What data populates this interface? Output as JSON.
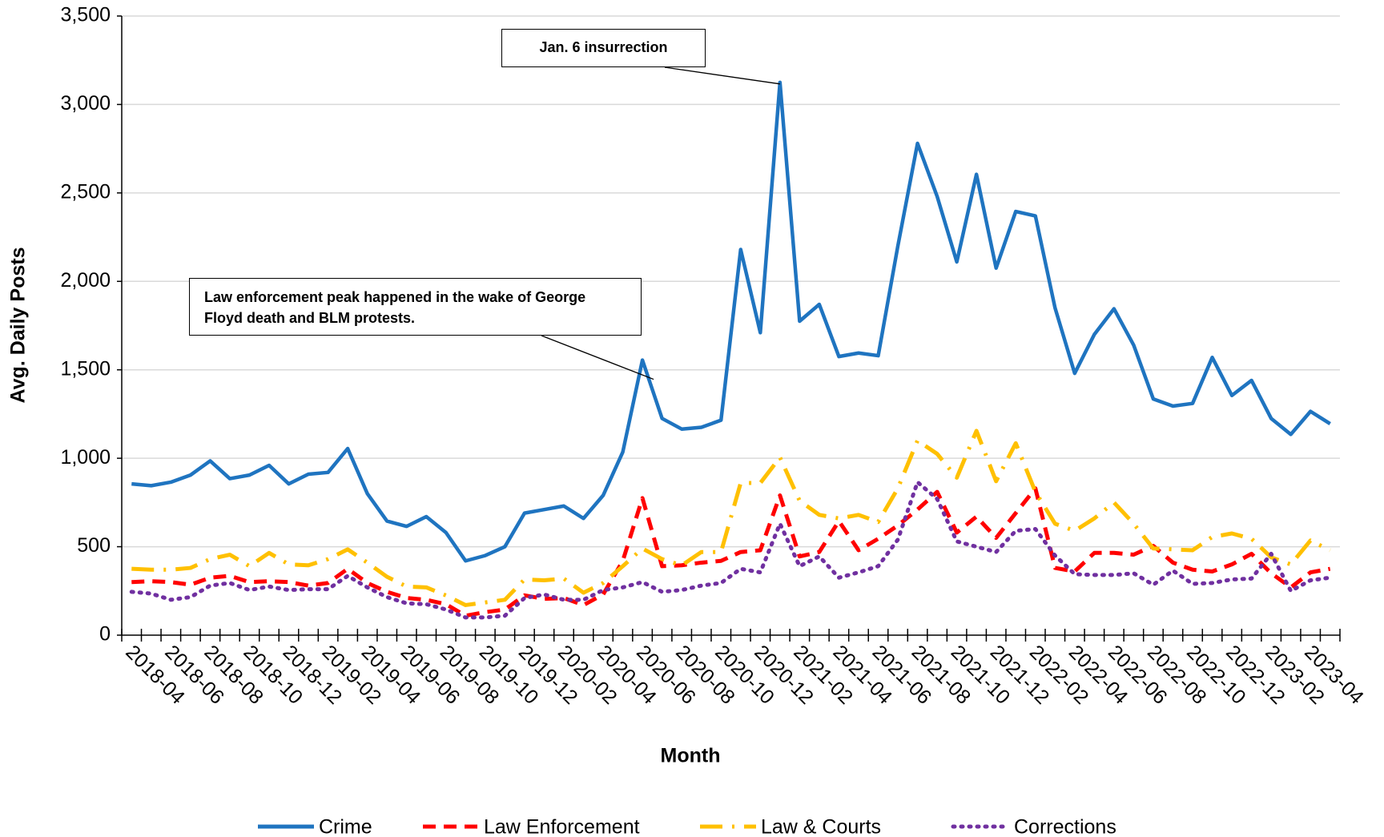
{
  "chart_data": {
    "type": "line",
    "x_label": "Month",
    "y_label": "Avg. Daily Posts",
    "categories": [
      "2018-04",
      null,
      "2018-06",
      null,
      "2018-08",
      null,
      "2018-10",
      null,
      "2018-12",
      null,
      "2019-02",
      null,
      "2019-04",
      null,
      "2019-06",
      null,
      "2019-08",
      null,
      "2019-10",
      null,
      "2019-12",
      null,
      "2020-02",
      null,
      "2020-04",
      null,
      "2020-06",
      null,
      "2020-08",
      null,
      "2020-10",
      null,
      "2020-12",
      null,
      "2021-02",
      null,
      "2021-04",
      null,
      "2021-06",
      null,
      "2021-08",
      null,
      "2021-10",
      null,
      "2021-12",
      null,
      "2022-02",
      null,
      "2022-04",
      null,
      "2022-06",
      null,
      "2022-08",
      null,
      "2022-10",
      null,
      "2022-12",
      null,
      "2023-02",
      null,
      "2023-04",
      null
    ],
    "series": [
      {
        "name": "Crime",
        "color": "#1f74c0",
        "dash": "solid",
        "values": [
          855,
          845,
          865,
          905,
          985,
          885,
          905,
          960,
          855,
          910,
          920,
          1055,
          800,
          645,
          615,
          670,
          580,
          420,
          450,
          500,
          690,
          710,
          730,
          660,
          790,
          1035,
          1555,
          1225,
          1165,
          1175,
          1215,
          2180,
          1710,
          3125,
          1775,
          1870,
          1575,
          1595,
          1580,
          2200,
          2780,
          2480,
          2110,
          2605,
          2075,
          2395,
          2370,
          1850,
          1480,
          1700,
          1845,
          1640,
          1335,
          1295,
          1310,
          1570,
          1355,
          1440,
          1225,
          1135,
          1265,
          1195
        ]
      },
      {
        "name": "Law Enforcement",
        "color": "#ff0000",
        "dash": "dash",
        "values": [
          300,
          305,
          300,
          285,
          325,
          335,
          300,
          305,
          300,
          280,
          295,
          375,
          295,
          245,
          210,
          200,
          175,
          110,
          130,
          145,
          225,
          205,
          210,
          170,
          230,
          420,
          775,
          390,
          395,
          410,
          420,
          470,
          480,
          790,
          445,
          470,
          645,
          480,
          545,
          620,
          710,
          810,
          580,
          670,
          550,
          690,
          830,
          380,
          360,
          465,
          465,
          455,
          505,
          410,
          370,
          360,
          400,
          460,
          350,
          270,
          355,
          375
        ]
      },
      {
        "name": "Law & Courts",
        "color": "#ffc000",
        "dash": "longdashdot",
        "values": [
          375,
          370,
          370,
          380,
          430,
          455,
          390,
          465,
          400,
          395,
          430,
          485,
          410,
          330,
          275,
          270,
          225,
          170,
          185,
          200,
          315,
          310,
          320,
          240,
          295,
          390,
          490,
          430,
          395,
          470,
          470,
          860,
          860,
          1005,
          760,
          680,
          660,
          680,
          640,
          830,
          1100,
          1025,
          890,
          1155,
          870,
          1085,
          810,
          630,
          590,
          660,
          750,
          630,
          490,
          485,
          480,
          555,
          575,
          545,
          440,
          400,
          535,
          480
        ]
      },
      {
        "name": "Corrections",
        "color": "#7030a0",
        "dash": "dot",
        "values": [
          245,
          235,
          200,
          215,
          280,
          295,
          255,
          275,
          255,
          260,
          260,
          335,
          270,
          215,
          180,
          175,
          145,
          100,
          100,
          110,
          210,
          230,
          200,
          200,
          255,
          270,
          300,
          245,
          255,
          280,
          295,
          375,
          355,
          630,
          390,
          445,
          325,
          355,
          390,
          540,
          865,
          770,
          530,
          500,
          470,
          590,
          600,
          450,
          345,
          340,
          340,
          350,
          285,
          365,
          290,
          295,
          315,
          320,
          460,
          250,
          310,
          325
        ]
      }
    ],
    "ylim": [
      0,
      3500
    ],
    "yticks": [
      0,
      500,
      {
        "value": 1000,
        "label": "1,000"
      },
      {
        "value": 1500,
        "label": "1,500"
      },
      {
        "value": 2000,
        "label": "2,000"
      },
      {
        "value": 2500,
        "label": "2,500"
      },
      {
        "value": 3000,
        "label": "3,000"
      },
      {
        "value": 3500,
        "label": "3,500"
      }
    ],
    "grid": true,
    "legend": "bottom",
    "annotations": [
      {
        "text": "Jan. 6 insurrection",
        "series": 0,
        "index": 33
      },
      {
        "text": "Law enforcement peak happened in the wake of George Floyd death and BLM protests.",
        "series": 0,
        "index": 26
      }
    ]
  }
}
